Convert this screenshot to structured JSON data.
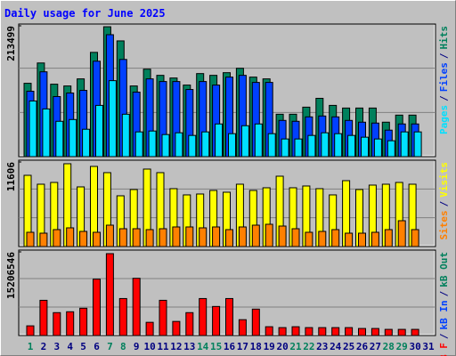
{
  "title": "Daily usage for June 2025",
  "legend_separator": "/",
  "weekend_color": "#00805c",
  "weekday_color": "#000080",
  "weekend": [
    1,
    7,
    8,
    14,
    15,
    21,
    22,
    28,
    29
  ],
  "categories": [
    "1",
    "2",
    "3",
    "4",
    "5",
    "6",
    "7",
    "8",
    "9",
    "10",
    "11",
    "12",
    "13",
    "14",
    "15",
    "16",
    "17",
    "18",
    "19",
    "20",
    "21",
    "22",
    "23",
    "24",
    "25",
    "26",
    "27",
    "28",
    "29",
    "30",
    "31"
  ],
  "chart_data": [
    {
      "type": "bar",
      "ylim": [
        0,
        213499
      ],
      "yticks": [
        213499
      ],
      "series": [
        {
          "name": "Hits",
          "color": "#00805c",
          "values": [
            119700,
            152850,
            118240,
            115360,
            126900,
            170160,
            211970,
            188900,
            115360,
            142760,
            132660,
            128340,
            116800,
            135550,
            132660,
            137000,
            144200,
            129780,
            126900,
            69220,
            69220,
            80750,
            95170,
            83640,
            79310,
            79310,
            79310,
            56240,
            67770,
            67770,
            null
          ]
        },
        {
          "name": "Files",
          "color": "#0040ff",
          "values": [
            106700,
            138430,
            98060,
            103820,
            108150,
            155740,
            199000,
            158620,
            105270,
            126900,
            122570,
            122570,
            109590,
            122570,
            116800,
            129780,
            132660,
            121130,
            121130,
            59120,
            57680,
            64890,
            66330,
            64890,
            59120,
            56240,
            54800,
            43260,
            53350,
            53350,
            null
          ]
        },
        {
          "name": "Pages",
          "color": "#00e0ff",
          "values": [
            90850,
            77870,
            57680,
            60560,
            44700,
            83640,
            124010,
            69220,
            40380,
            41820,
            36050,
            38930,
            34610,
            40380,
            53350,
            37490,
            50470,
            53350,
            37490,
            28840,
            28840,
            34610,
            38930,
            37490,
            34610,
            31720,
            28840,
            25960,
            40380,
            40380,
            null
          ]
        }
      ]
    },
    {
      "type": "bar",
      "ylim": [
        0,
        11606
      ],
      "yticks": [
        11606
      ],
      "series": [
        {
          "name": "Visits",
          "color": "#ffff00",
          "values": [
            9776,
            8554,
            8798,
            11365,
            8187,
            10998,
            10143,
            6965,
            7821,
            10631,
            10143,
            7943,
            7088,
            7210,
            7699,
            7454,
            8554,
            7699,
            8065,
            9654,
            8065,
            8310,
            7943,
            7088,
            9043,
            7821,
            8432,
            8554,
            8798,
            8554,
            null
          ]
        },
        {
          "name": "Sites",
          "color": "#ff8000",
          "values": [
            1955,
            1833,
            2322,
            2566,
            2077,
            1955,
            2933,
            2444,
            2444,
            2322,
            2444,
            2688,
            2688,
            2566,
            2688,
            2322,
            2688,
            2933,
            3055,
            2811,
            2444,
            1955,
            2077,
            2322,
            1833,
            1833,
            1955,
            2322,
            3544,
            2322,
            null
          ]
        }
      ]
    },
    {
      "type": "bar",
      "ylim": [
        0,
        15206546
      ],
      "yticks": [
        15206546
      ],
      "series": [
        {
          "name": "kB F",
          "color": "#ff0000",
          "values": [
            1760760,
            6402760,
            4161790,
            4321860,
            4962140,
            10244420,
            14886420,
            6722900,
            10404490,
            2401040,
            6402760,
            2561100,
            4161790,
            6722900,
            5282280,
            6722900,
            2881240,
            4802070,
            1600690,
            1440620,
            1600690,
            1440620,
            1440620,
            1440620,
            1440620,
            1280550,
            1280550,
            1120480,
            1120480,
            1120480,
            null
          ]
        }
      ],
      "legend_extra": [
        {
          "name": "kB In",
          "color": "#0040ff"
        },
        {
          "name": "kB Out",
          "color": "#00805c"
        }
      ]
    }
  ]
}
